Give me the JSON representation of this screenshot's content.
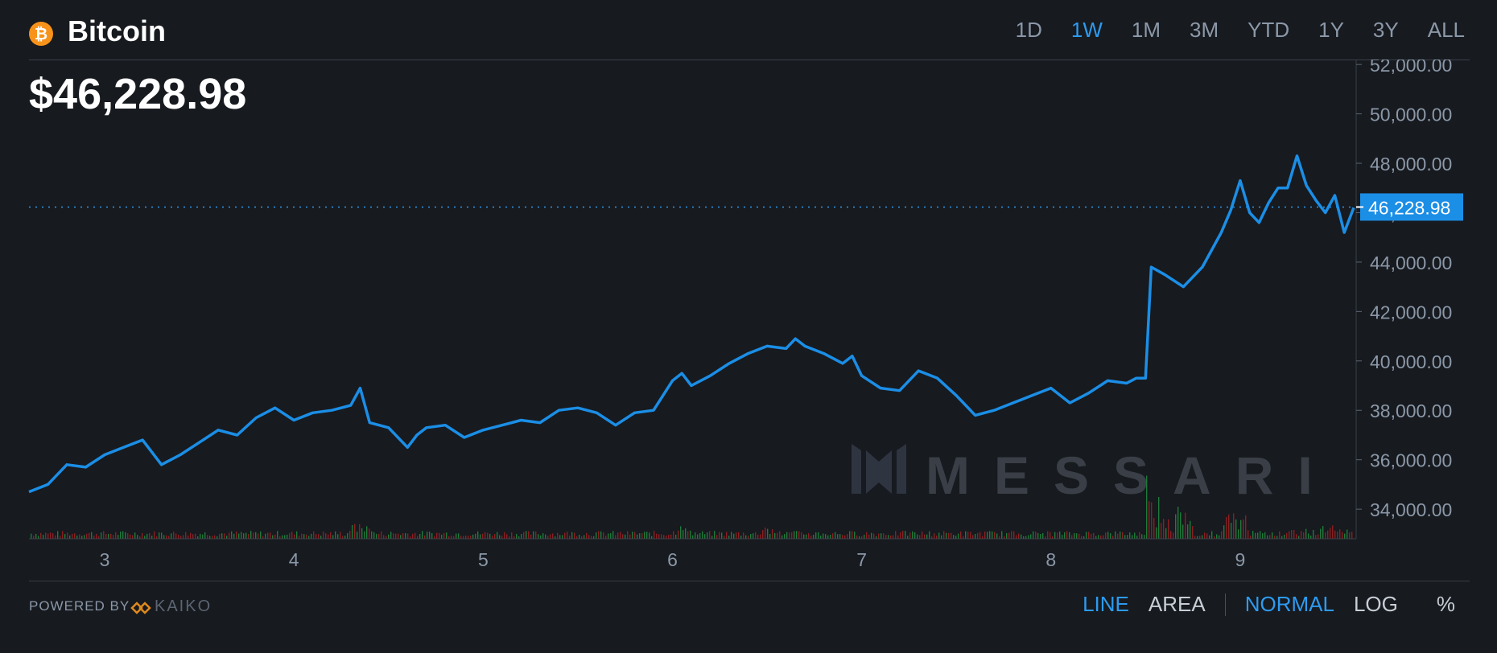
{
  "header": {
    "coin_icon": "bitcoin-icon",
    "coin_icon_glyph": "₿",
    "coin_name": "Bitcoin",
    "current_price": "$46,228.98",
    "ranges": [
      "1D",
      "1W",
      "1M",
      "3M",
      "YTD",
      "1Y",
      "3Y",
      "ALL"
    ],
    "active_range": "1W"
  },
  "footer": {
    "powered_by": "POWERED BY",
    "provider": "KAIKO",
    "chart_styles": [
      "LINE",
      "AREA"
    ],
    "active_style": "LINE",
    "scales": [
      "NORMAL",
      "LOG",
      "%"
    ],
    "active_scale": "NORMAL"
  },
  "watermark": "MESSARI",
  "colors": {
    "background": "#171a1f",
    "line": "#1b8ee6",
    "accent": "#2d9bf0",
    "volume_up": "#1f7a3a",
    "volume_down": "#8a1f22",
    "price_label_bg": "#1b8ee6"
  },
  "chart_data": {
    "type": "line",
    "x_ticks": [
      "3",
      "4",
      "5",
      "6",
      "7",
      "8",
      "9"
    ],
    "xlim": [
      2.6,
      9.6
    ],
    "ylim": [
      32800,
      52200
    ],
    "y_ticks": [
      "52,000.00",
      "50,000.00",
      "48,000.00",
      "46,000.00",
      "44,000.00",
      "42,000.00",
      "40,000.00",
      "38,000.00",
      "36,000.00",
      "34,000.00"
    ],
    "y_tick_values": [
      52000,
      50000,
      48000,
      46000,
      44000,
      42000,
      40000,
      38000,
      36000,
      34000
    ],
    "current_value": 46228.98,
    "current_value_label": "46,228.98",
    "series": [
      {
        "x": [
          2.6,
          2.7,
          2.8,
          2.9,
          3.0,
          3.1,
          3.2,
          3.3,
          3.4,
          3.5,
          3.6,
          3.7,
          3.8,
          3.9,
          4.0,
          4.1,
          4.2,
          4.3,
          4.35,
          4.4,
          4.5,
          4.6,
          4.65,
          4.7,
          4.8,
          4.9,
          5.0,
          5.1,
          5.2,
          5.3,
          5.4,
          5.5,
          5.6,
          5.7,
          5.8,
          5.9,
          6.0,
          6.05,
          6.1,
          6.2,
          6.3,
          6.4,
          6.5,
          6.6,
          6.65,
          6.7,
          6.8,
          6.9,
          6.95,
          7.0,
          7.1,
          7.2,
          7.3,
          7.4,
          7.5,
          7.6,
          7.7,
          7.8,
          7.9,
          8.0,
          8.1,
          8.2,
          8.3,
          8.4,
          8.45,
          8.5,
          8.53,
          8.6,
          8.7,
          8.8,
          8.9,
          8.95,
          9.0,
          9.05,
          9.1,
          9.15,
          9.2,
          9.25,
          9.3,
          9.35,
          9.4,
          9.45,
          9.5,
          9.55,
          9.6
        ],
        "y": [
          34700,
          35000,
          35800,
          35700,
          36200,
          36500,
          36800,
          35800,
          36200,
          36700,
          37200,
          37000,
          37700,
          38100,
          37600,
          37900,
          38000,
          38200,
          38900,
          37500,
          37300,
          36500,
          37000,
          37300,
          37400,
          36900,
          37200,
          37400,
          37600,
          37500,
          38000,
          38100,
          37900,
          37400,
          37900,
          38000,
          39200,
          39500,
          39000,
          39400,
          39900,
          40300,
          40600,
          40500,
          40900,
          40600,
          40300,
          39900,
          40200,
          39400,
          38900,
          38800,
          39600,
          39300,
          38600,
          37800,
          38000,
          38300,
          38600,
          38900,
          38300,
          38700,
          39200,
          39100,
          39300,
          39300,
          43800,
          43500,
          43000,
          43800,
          45200,
          46100,
          47300,
          46000,
          45600,
          46400,
          47000,
          47000,
          48300,
          47100,
          46500,
          46000,
          46700,
          45200,
          46200
        ]
      }
    ]
  }
}
